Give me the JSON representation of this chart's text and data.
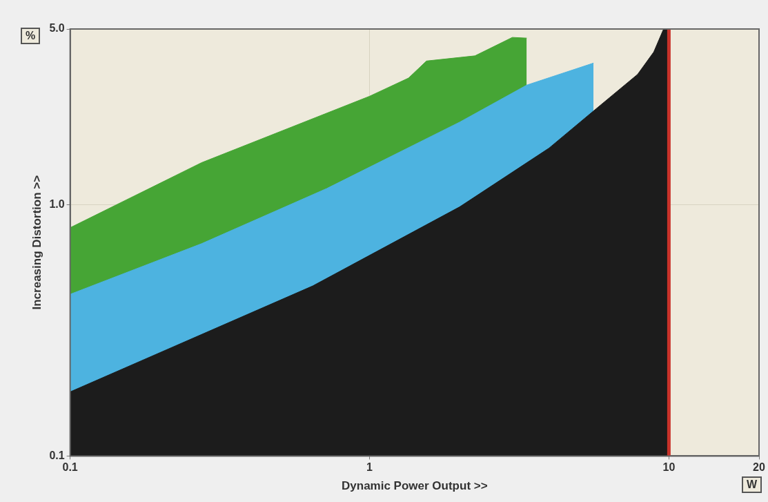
{
  "chart_data": {
    "type": "area",
    "xlabel": "Dynamic Power Output >>",
    "ylabel": "Increasing Distortion >>",
    "log": "xy",
    "xlim": [
      0.1,
      20
    ],
    "ylim": [
      0.1,
      5
    ],
    "xticks": [
      0.1,
      1,
      10,
      20
    ],
    "yticks": [
      0.1,
      {
        "value": 1,
        "label": "1.0"
      },
      {
        "value": 5,
        "label": "5.0"
      }
    ],
    "grid": true,
    "legend": false,
    "series": [
      {
        "color": "#46a535",
        "x": [
          0.1,
          0.275,
          1,
          1.35,
          1.55,
          2.25,
          3.0,
          3.35
        ],
        "values": [
          0.81,
          1.47,
          2.7,
          3.19,
          3.73,
          3.91,
          4.63,
          4.6
        ]
      },
      {
        "color": "#4db3e0",
        "x": [
          0.1,
          0.275,
          0.72,
          2.0,
          3.35,
          5.6
        ],
        "values": [
          0.44,
          0.7,
          1.16,
          2.13,
          2.99,
          3.66
        ]
      },
      {
        "color": "#1c1c1c",
        "x": [
          0.1,
          0.646,
          2.0,
          3.98,
          5.6,
          7.86,
          8.9,
          9.6,
          10
        ],
        "values": [
          0.18,
          0.475,
          0.98,
          1.68,
          2.36,
          3.3,
          4.05,
          5.0,
          5.0
        ]
      }
    ],
    "ref_lines": [
      {
        "axis": "x",
        "value": 10,
        "color": "#c8322a"
      }
    ],
    "annotations": [
      "%",
      "W"
    ]
  }
}
